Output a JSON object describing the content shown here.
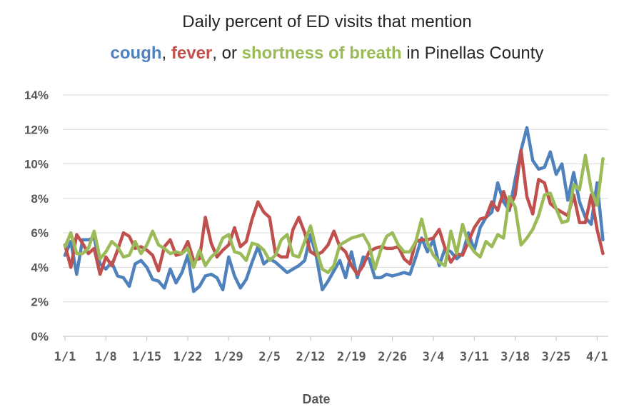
{
  "chart_data": {
    "type": "line",
    "title": "Daily percent of ED visits that mention",
    "title_connectors": [
      ", ",
      ", or ",
      " in Pinellas County"
    ],
    "x_label": "Date",
    "categories": [
      "1/1",
      null,
      null,
      null,
      null,
      null,
      null,
      "1/8",
      null,
      null,
      null,
      null,
      null,
      null,
      "1/15",
      null,
      null,
      null,
      null,
      null,
      null,
      "1/22",
      null,
      null,
      null,
      null,
      null,
      null,
      "1/29",
      null,
      null,
      null,
      null,
      null,
      null,
      "2/5",
      null,
      null,
      null,
      null,
      null,
      null,
      "2/12",
      null,
      null,
      null,
      null,
      null,
      null,
      "2/19",
      null,
      null,
      null,
      null,
      null,
      null,
      "2/26",
      null,
      null,
      null,
      null,
      null,
      null,
      "3/4",
      null,
      null,
      null,
      null,
      null,
      null,
      "3/11",
      null,
      null,
      null,
      null,
      null,
      null,
      "3/18",
      null,
      null,
      null,
      null,
      null,
      null,
      "3/25",
      null,
      null,
      null,
      null,
      null,
      null,
      "4/1",
      null
    ],
    "series": [
      {
        "name": "cough",
        "color": "#4f81bd",
        "values": [
          4.7,
          5.5,
          3.6,
          5.6,
          5.6,
          5.7,
          4.2,
          3.9,
          4.3,
          3.5,
          3.4,
          2.9,
          4.2,
          4.4,
          4.0,
          3.3,
          3.2,
          2.8,
          3.9,
          3.1,
          3.7,
          4.7,
          2.6,
          2.9,
          3.5,
          3.6,
          3.4,
          2.7,
          4.6,
          3.5,
          2.8,
          3.3,
          4.3,
          5.2,
          4.2,
          4.5,
          4.3,
          4.0,
          3.7,
          3.9,
          4.1,
          4.4,
          5.9,
          4.6,
          2.7,
          3.2,
          3.8,
          4.4,
          3.4,
          4.9,
          3.4,
          4.6,
          4.5,
          3.4,
          3.4,
          3.6,
          3.5,
          3.6,
          3.7,
          3.6,
          4.6,
          5.7,
          4.9,
          5.6,
          4.1,
          5.1,
          4.9,
          4.5,
          4.8,
          6.0,
          5.0,
          6.3,
          6.9,
          7.2,
          8.9,
          7.8,
          7.3,
          9.1,
          10.8,
          12.1,
          10.2,
          9.7,
          9.8,
          10.7,
          9.4,
          10.0,
          7.9,
          9.5,
          7.8,
          6.9,
          6.5,
          8.9,
          5.6
        ]
      },
      {
        "name": "fever",
        "color": "#c0504d",
        "values": [
          5.3,
          4.0,
          5.9,
          5.4,
          4.8,
          5.1,
          3.6,
          4.6,
          4.1,
          5.0,
          6.0,
          5.8,
          5.1,
          5.2,
          5.0,
          4.7,
          3.8,
          5.2,
          5.6,
          4.7,
          4.8,
          5.5,
          4.4,
          4.5,
          6.9,
          5.4,
          4.6,
          5.0,
          5.3,
          6.3,
          5.2,
          5.5,
          6.8,
          7.8,
          7.2,
          6.9,
          4.8,
          4.6,
          4.6,
          6.2,
          6.9,
          6.0,
          4.9,
          4.7,
          4.9,
          5.3,
          6.1,
          5.2,
          4.9,
          4.1,
          3.6,
          4.1,
          4.9,
          5.1,
          5.2,
          5.1,
          5.1,
          5.2,
          4.5,
          4.2,
          5.5,
          5.6,
          5.6,
          5.7,
          6.2,
          5.1,
          4.3,
          4.8,
          4.7,
          5.5,
          6.3,
          6.8,
          6.9,
          7.8,
          7.3,
          8.4,
          7.4,
          8.2,
          10.8,
          8.1,
          7.1,
          9.1,
          8.9,
          7.7,
          7.4,
          7.2,
          7.0,
          8.2,
          6.6,
          6.6,
          8.2,
          6.2,
          4.8
        ]
      },
      {
        "name": "shortness of breath",
        "color": "#9bbb59",
        "values": [
          5.2,
          6.0,
          4.8,
          4.8,
          5.1,
          6.1,
          4.5,
          4.9,
          5.5,
          5.2,
          4.6,
          4.7,
          5.5,
          4.8,
          5.3,
          6.1,
          5.3,
          5.1,
          4.8,
          4.9,
          4.8,
          5.1,
          4.0,
          5.0,
          4.1,
          4.6,
          4.9,
          5.7,
          5.9,
          4.9,
          4.8,
          4.4,
          5.4,
          5.3,
          5.0,
          4.4,
          4.7,
          5.6,
          5.9,
          4.7,
          4.6,
          5.5,
          6.4,
          5.0,
          3.9,
          3.7,
          4.1,
          5.3,
          5.5,
          5.7,
          5.8,
          5.9,
          5.3,
          3.9,
          5.0,
          5.8,
          6.0,
          5.3,
          4.9,
          4.9,
          5.5,
          6.8,
          5.4,
          4.7,
          4.3,
          4.1,
          6.1,
          4.8,
          6.5,
          5.4,
          4.9,
          4.6,
          5.5,
          5.2,
          5.9,
          5.7,
          8.1,
          7.5,
          5.3,
          5.7,
          6.2,
          7.0,
          8.2,
          8.3,
          7.4,
          6.6,
          6.7,
          8.8,
          8.5,
          10.5,
          8.5,
          7.6,
          10.3
        ]
      }
    ],
    "ylim": [
      0,
      14
    ],
    "yticks": [
      {
        "value": 0,
        "label": "0%"
      },
      {
        "value": 2,
        "label": "2%"
      },
      {
        "value": 4,
        "label": "4%"
      },
      {
        "value": 6,
        "label": "6%"
      },
      {
        "value": 8,
        "label": "8%"
      },
      {
        "value": 10,
        "label": "10%"
      },
      {
        "value": 12,
        "label": "12%"
      },
      {
        "value": 14,
        "label": "14%"
      }
    ],
    "grid": true
  }
}
